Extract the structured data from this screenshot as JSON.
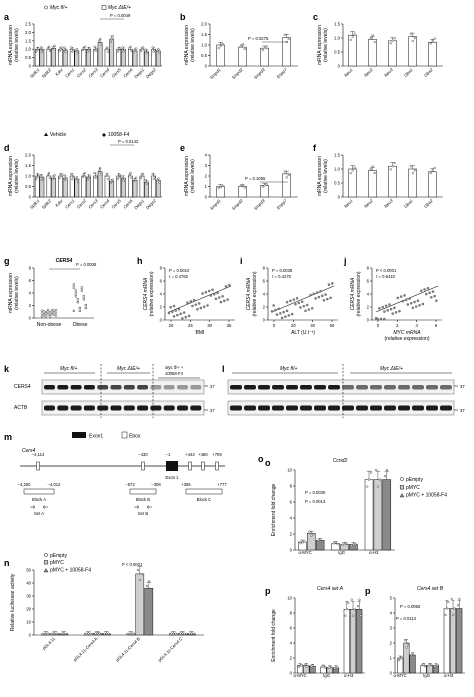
{
  "panels": {
    "a": {
      "letter": "a",
      "legend": [
        "Myc fl/+",
        "Myc ΔIE/+"
      ],
      "ylabel": [
        "mRNA expression",
        "(relative levels)"
      ],
      "p": "P = 0.0049",
      "genes": [
        "Sptlc1",
        "Sptlc2",
        "Kdsr",
        "Cers1",
        "Cers2",
        "Cers3",
        "Cers4",
        "Cers5",
        "Cers6",
        "Degs1",
        "Degs2"
      ],
      "ticks": [
        "0",
        "0.5",
        "1.0",
        "1.5",
        "2.0",
        "2.5"
      ]
    },
    "b": {
      "letter": "b",
      "ylabel": [
        "mRNA expression",
        "(relative levels)"
      ],
      "p": "P = 0.0275",
      "genes": [
        "Smpd1",
        "Smpd2",
        "Smpd3",
        "Enpp7"
      ],
      "ticks": [
        "0",
        "0.5",
        "1.0",
        "1.5",
        "2.0"
      ]
    },
    "c": {
      "letter": "c",
      "ylabel": [
        "mRNA expression",
        "(relative levels)"
      ],
      "genes": [
        "Neu1",
        "Neu2",
        "Neu3",
        "Gba1",
        "Gba2"
      ],
      "ticks": [
        "0",
        "0.5",
        "1.0",
        "1.5"
      ]
    },
    "d": {
      "letter": "d",
      "legend": [
        "Vehicle",
        "10058-F4"
      ],
      "ylabel": [
        "mRNA expression",
        "(relative levels)"
      ],
      "p": "P = 0.0142",
      "genes": [
        "Sptlc1",
        "Sptlc2",
        "Kdsr",
        "Cers1",
        "Cers2",
        "Cers3",
        "Cers4",
        "Cers5",
        "Cers6",
        "Degs1",
        "Degs2"
      ],
      "ticks": [
        "0",
        "0.5",
        "1.0",
        "1.5",
        "2.0"
      ]
    },
    "e": {
      "letter": "e",
      "ylabel": [
        "mRNA expression",
        "(relative levels)"
      ],
      "p": "P = 0.1055",
      "genes": [
        "Smpd1",
        "Smpd2",
        "Smpd3",
        "Enpp7"
      ],
      "ticks": [
        "0",
        "1",
        "2",
        "3",
        "4"
      ]
    },
    "f": {
      "letter": "f",
      "ylabel": [
        "mRNA expression",
        "(relative levels)"
      ],
      "genes": [
        "Neu1",
        "Neu2",
        "Neu3",
        "Gba1",
        "Gba2"
      ],
      "ticks": [
        "0",
        "0.5",
        "1.0",
        "1.5"
      ]
    },
    "g": {
      "letter": "g",
      "title": "CERS4",
      "p": "P = 0.0008",
      "ylabel": [
        "mRNA expression",
        "(relative levels)"
      ],
      "groups": [
        "Non-obese",
        "Obese"
      ],
      "ticks": [
        "0",
        "2",
        "4",
        "6",
        "8"
      ]
    },
    "h": {
      "letter": "h",
      "stats": [
        "P = 0.0010",
        "r = 0.4782"
      ],
      "ylabel": [
        "CERS4 mRNA",
        "(relative expression)"
      ],
      "xlabel": "BMI",
      "xticks": [
        "20",
        "25",
        "30",
        "35"
      ],
      "ticks": [
        "0",
        "2",
        "4",
        "6",
        "8"
      ]
    },
    "i": {
      "letter": "i",
      "stats": [
        "P = 0.0038",
        "r = 0.4270"
      ],
      "ylabel": [
        "CERS4 mRNA",
        "(relative expression)"
      ],
      "xlabel": "ALT (U l⁻¹)",
      "xticks": [
        "0",
        "20",
        "40",
        "60"
      ],
      "ticks": [
        "0",
        "2",
        "4",
        "6",
        "8"
      ]
    },
    "j": {
      "letter": "j",
      "stats": [
        "P < 0.0001",
        "r = 0.6410"
      ],
      "ylabel": [
        "CERS4 mRNA",
        "(relative expression)"
      ],
      "xlabel": [
        "MYC mRNA",
        "(relative expression)"
      ],
      "xticks": [
        "0",
        "2",
        "4",
        "6"
      ],
      "ticks": [
        "0",
        "2",
        "4",
        "6",
        "8"
      ]
    },
    "k": {
      "letter": "k",
      "groups": [
        "Myc fl/+",
        "Myc ΔIE/+",
        "Myc fl/+ +",
        "10058-F4"
      ],
      "rows": [
        "CERS4",
        "ACTB"
      ],
      "mw": [
        "37",
        "37"
      ]
    },
    "l": {
      "letter": "l",
      "groups": [
        "Myc fl/+",
        "Myc ΔIE/+"
      ],
      "mw": [
        "37",
        "37"
      ]
    },
    "m": {
      "letter": "m",
      "gene": "Cers4",
      "legend": [
        "Exon1",
        "Ebox"
      ],
      "exon_label": "Exon 1",
      "positions": [
        "−4,114",
        "−430",
        "−1",
        "+443",
        "+460",
        "+709"
      ],
      "blocks": [
        {
          "range": [
            "−4,260",
            "−4,012"
          ],
          "name": "Block A",
          "set": "Set A"
        },
        {
          "range": [
            "−572",
            "−308"
          ],
          "name": "Block B",
          "set": "Set B"
        },
        {
          "range": [
            "+395",
            "+777"
          ],
          "name": "Block C"
        }
      ]
    },
    "n": {
      "letter": "n",
      "legend": [
        "pEmpty",
        "pMYC",
        "pMYC + 10058-F4"
      ],
      "p": "P < 0.0001",
      "ylabel": "Relative luciferase activity",
      "ticks": [
        "0",
        "10",
        "20",
        "30",
        "40",
        "50"
      ],
      "groups": [
        "pGL4.11",
        "pGL4.11-Cers4 A",
        "pGL4.11-Cers4 B",
        "pGL4.11-Cers4 C"
      ]
    },
    "o": {
      "letter": "o",
      "title": "Ccnd2",
      "legend": [
        "pEmpty",
        "pMYC",
        "pMYC + 10058-F4"
      ],
      "p": [
        "P = 0.0030",
        "P = 0.0013"
      ],
      "ylabel": "Enrichment fold change",
      "ticks": [
        "0",
        "2",
        "4",
        "6",
        "8",
        "10"
      ],
      "groups": [
        "α-MYC",
        "IgG",
        "α-H3"
      ]
    },
    "p": {
      "letter": "p",
      "titles": [
        "Cers4 set A",
        "Cers4 set B"
      ],
      "p": [
        "P = 0.0065",
        "P = 0.0114"
      ],
      "ylabel": "Enrichment fold change",
      "ticks_left": [
        "0",
        "2",
        "4",
        "6",
        "8",
        "10"
      ],
      "ticks_right": [
        "0",
        "1",
        "2",
        "3",
        "4",
        "5"
      ],
      "groups": [
        "α-MYC",
        "IgG",
        "α-H3"
      ]
    }
  },
  "chart_data": [
    {
      "type": "bar",
      "panel": "a",
      "categories": [
        "Sptlc1",
        "Sptlc2",
        "Kdsr",
        "Cers1",
        "Cers2",
        "Cers3",
        "Cers4",
        "Cers5",
        "Cers6",
        "Degs1",
        "Degs2"
      ],
      "ylim": [
        0,
        2.5
      ],
      "series": [
        {
          "name": "Myc fl/+",
          "values": [
            1,
            1,
            1,
            1,
            1,
            1,
            1,
            1,
            1,
            1,
            1
          ]
        },
        {
          "name": "Myc ΔIE/+",
          "values": [
            1.0,
            1.05,
            0.95,
            0.9,
            1.0,
            1.4,
            1.6,
            1.0,
            0.9,
            0.85,
            0.9
          ]
        }
      ]
    },
    {
      "type": "bar",
      "panel": "b",
      "categories": [
        "Smpd1",
        "Smpd2",
        "Smpd3",
        "Enpp7"
      ],
      "ylim": [
        0,
        2.0
      ],
      "series": [
        {
          "values": [
            1.0,
            0.9,
            0.85,
            1.35
          ]
        }
      ]
    },
    {
      "type": "bar",
      "panel": "c",
      "categories": [
        "Neu1",
        "Neu2",
        "Neu3",
        "Gba1",
        "Gba2"
      ],
      "ylim": [
        0,
        1.5
      ],
      "series": [
        {
          "values": [
            1.1,
            0.95,
            0.9,
            1.05,
            0.85
          ]
        }
      ]
    },
    {
      "type": "bar",
      "panel": "d",
      "categories": [
        "Sptlc1",
        "Sptlc2",
        "Kdsr",
        "Cers1",
        "Cers2",
        "Cers3",
        "Cers4",
        "Cers5",
        "Cers6",
        "Degs1",
        "Degs2"
      ],
      "ylim": [
        0,
        2.0
      ],
      "series": [
        {
          "name": "Vehicle",
          "values": [
            1,
            1,
            1,
            1,
            1,
            1,
            1,
            1,
            1,
            1,
            1
          ]
        },
        {
          "name": "10058-F4",
          "values": [
            0.95,
            0.9,
            0.9,
            0.85,
            0.95,
            1.2,
            0.75,
            0.9,
            0.8,
            0.7,
            0.8
          ]
        }
      ]
    },
    {
      "type": "bar",
      "panel": "e",
      "categories": [
        "Smpd1",
        "Smpd2",
        "Smpd3",
        "Enpp7"
      ],
      "ylim": [
        0,
        4
      ],
      "series": [
        {
          "values": [
            1.0,
            1.0,
            1.1,
            2.2
          ]
        }
      ]
    },
    {
      "type": "bar",
      "panel": "f",
      "categories": [
        "Neu1",
        "Neu2",
        "Neu3",
        "Gba1",
        "Gba2"
      ],
      "ylim": [
        0,
        1.5
      ],
      "series": [
        {
          "values": [
            1.0,
            0.95,
            1.1,
            1.0,
            0.9
          ]
        }
      ]
    },
    {
      "type": "scatter",
      "panel": "g",
      "categories": [
        "Non-obese",
        "Obese"
      ],
      "ylim": [
        0,
        8
      ],
      "series": [
        {
          "values": [
            0.9,
            2.8
          ]
        }
      ]
    },
    {
      "type": "scatter",
      "panel": "h",
      "xlim": [
        15,
        40
      ],
      "ylim": [
        0,
        8
      ]
    },
    {
      "type": "scatter",
      "panel": "i",
      "xlim": [
        0,
        80
      ],
      "ylim": [
        0,
        8
      ]
    },
    {
      "type": "scatter",
      "panel": "j",
      "xlim": [
        0,
        8
      ],
      "ylim": [
        0,
        8
      ]
    },
    {
      "type": "bar",
      "panel": "n",
      "categories": [
        "pGL4.11",
        "pGL4.11-Cers4 A",
        "pGL4.11-Cers4 B",
        "pGL4.11-Cers4 C"
      ],
      "ylim": [
        0,
        50
      ],
      "series": [
        {
          "name": "pEmpty",
          "values": [
            1,
            1,
            1,
            1
          ]
        },
        {
          "name": "pMYC",
          "values": [
            1,
            1.2,
            47,
            1.1
          ]
        },
        {
          "name": "pMYC + 10058-F4",
          "values": [
            1,
            1,
            36,
            1
          ]
        }
      ]
    },
    {
      "type": "bar",
      "panel": "o",
      "categories": [
        "α-MYC",
        "IgG",
        "α-H3"
      ],
      "ylim": [
        0,
        10
      ],
      "series": [
        {
          "name": "pEmpty",
          "values": [
            1,
            0.8,
            8.8
          ]
        },
        {
          "name": "pMYC",
          "values": [
            2.1,
            0.7,
            8.8
          ]
        },
        {
          "name": "pMYC + 10058-F4",
          "values": [
            1.2,
            0.7,
            8.8
          ]
        }
      ]
    },
    {
      "type": "bar",
      "panel": "p-left",
      "categories": [
        "α-MYC",
        "IgG",
        "α-H3"
      ],
      "ylim": [
        0,
        10
      ],
      "series": [
        {
          "name": "pEmpty",
          "values": [
            1,
            0.8,
            8.5
          ]
        },
        {
          "name": "pMYC",
          "values": [
            1,
            0.7,
            8.5
          ]
        },
        {
          "name": "pMYC + 10058-F4",
          "values": [
            0.9,
            0.7,
            8.5
          ]
        }
      ]
    },
    {
      "type": "bar",
      "panel": "p-right",
      "categories": [
        "α-MYC",
        "IgG",
        "α-H3"
      ],
      "ylim": [
        0,
        5
      ],
      "series": [
        {
          "name": "pEmpty",
          "values": [
            1,
            0.5,
            4.3
          ]
        },
        {
          "name": "pMYC",
          "values": [
            2.0,
            0.5,
            4.3
          ]
        },
        {
          "name": "pMYC + 10058-F4",
          "values": [
            1.2,
            0.5,
            4.3
          ]
        }
      ]
    }
  ]
}
